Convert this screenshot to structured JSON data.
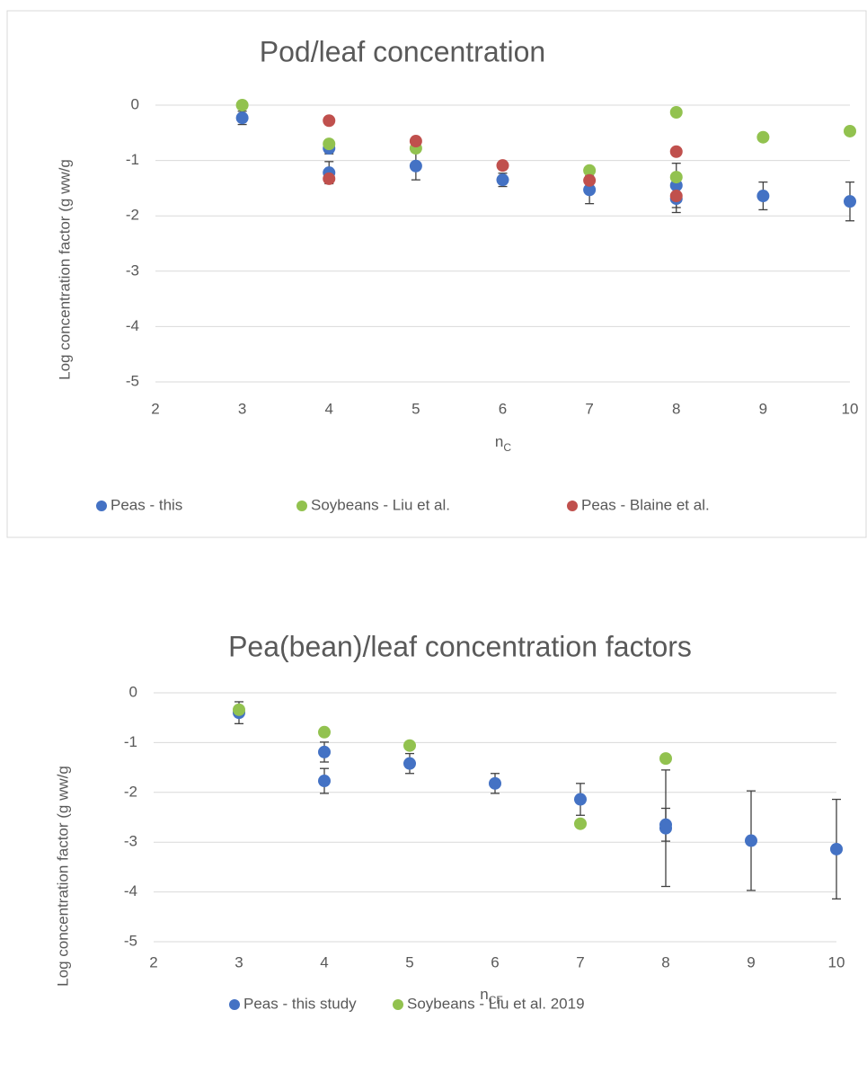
{
  "chart_data": [
    {
      "type": "scatter",
      "title": "Pod/leaf concentration",
      "x_label": "n",
      "x_label_subscript": "C",
      "y_label": "Log concentration factor (g ww/g",
      "xlim": [
        2,
        10
      ],
      "xticks": [
        2,
        3,
        4,
        5,
        6,
        7,
        8,
        9,
        10
      ],
      "ylim": [
        -5,
        0
      ],
      "yticks": [
        -5,
        -4,
        -3,
        -2,
        -1,
        0
      ],
      "grid": true,
      "legend": "bottom",
      "series": [
        {
          "name": "Peas - this",
          "color": "#4472c4",
          "x": [
            3,
            4,
            4,
            5,
            6,
            7,
            8,
            8,
            9,
            10
          ],
          "values": [
            -0.23,
            -0.78,
            -1.22,
            -1.1,
            -1.35,
            -1.53,
            -1.45,
            -1.69,
            -1.64,
            -1.74
          ],
          "errors": [
            0.12,
            0.1,
            0.2,
            0.25,
            0.12,
            0.25,
            0.4,
            0.25,
            0.25,
            0.35
          ]
        },
        {
          "name": "Soybeans - Liu et al.",
          "color": "#92c24f",
          "x": [
            3,
            4,
            5,
            7,
            8,
            8,
            9,
            10
          ],
          "values": [
            0,
            -0.7,
            -0.78,
            -1.18,
            -0.13,
            -1.3,
            -0.58,
            -0.47
          ]
        },
        {
          "name": "Peas - Blaine et al.",
          "color": "#c0504d",
          "x": [
            4,
            4,
            5,
            6,
            7,
            8,
            8
          ],
          "values": [
            -0.28,
            -1.33,
            -0.65,
            -1.09,
            -1.36,
            -0.84,
            -1.64
          ]
        }
      ]
    },
    {
      "type": "scatter",
      "title": "Pea(bean)/leaf concentration factors",
      "x_label": "n",
      "x_label_subscript": "CF",
      "y_label": "Log concentration factor (g ww/g",
      "xlim": [
        2,
        10
      ],
      "xticks": [
        2,
        3,
        4,
        5,
        6,
        7,
        8,
        9,
        10
      ],
      "ylim": [
        -5,
        0
      ],
      "yticks": [
        -5,
        -4,
        -3,
        -2,
        -1,
        0
      ],
      "grid": true,
      "legend": "bottom",
      "series": [
        {
          "name": "Peas - this study",
          "color": "#4472c4",
          "x": [
            3,
            4,
            4,
            5,
            6,
            7,
            8,
            8,
            9,
            10
          ],
          "values": [
            -0.4,
            -1.19,
            -1.77,
            -1.42,
            -1.82,
            -2.14,
            -2.65,
            -2.72,
            -2.97,
            -3.14
          ],
          "errors": [
            0.22,
            0.2,
            0.25,
            0.2,
            0.2,
            0.32,
            0.33,
            1.17,
            1.0,
            1.0
          ]
        },
        {
          "name": "Soybeans - Liu et al. 2019",
          "color": "#92c24f",
          "x": [
            3,
            4,
            5,
            7,
            8
          ],
          "values": [
            -0.34,
            -0.79,
            -1.06,
            -2.63,
            -1.32
          ]
        }
      ]
    }
  ]
}
